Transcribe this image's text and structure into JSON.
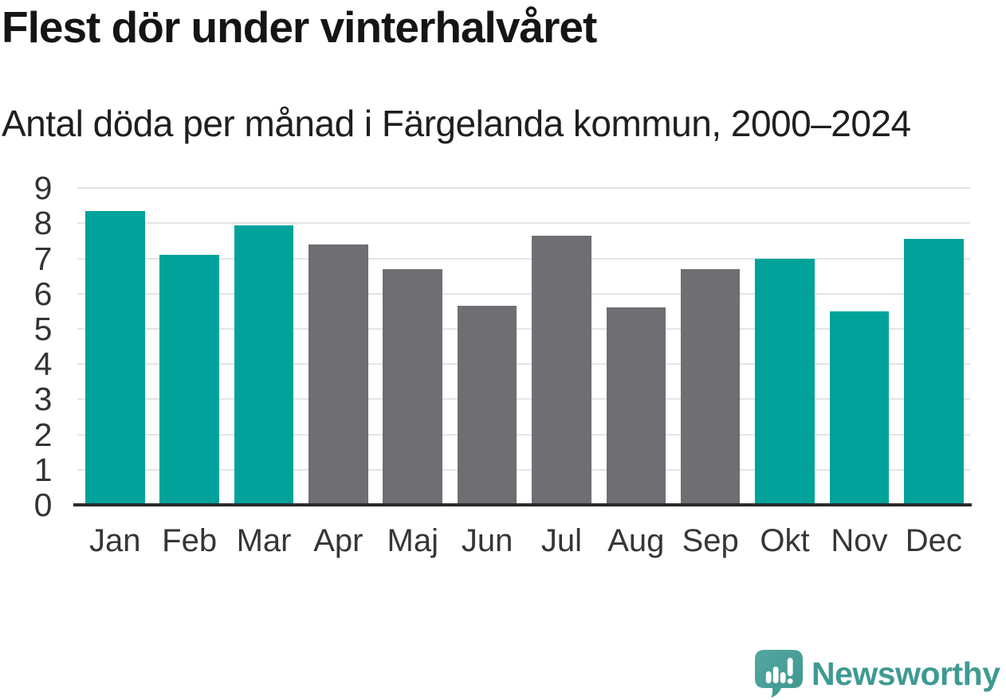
{
  "title": "Flest dör under vinterhalvåret",
  "subtitle": "Antal döda per månad i Färgelanda kommun, 2000–2024",
  "chart_data": {
    "type": "bar",
    "title": "Flest dör under vinterhalvåret",
    "subtitle": "Antal döda per månad i Färgelanda kommun, 2000–2024",
    "categories": [
      "Jan",
      "Feb",
      "Mar",
      "Apr",
      "Maj",
      "Jun",
      "Jul",
      "Aug",
      "Sep",
      "Okt",
      "Nov",
      "Dec"
    ],
    "values": [
      8.35,
      7.1,
      7.95,
      7.4,
      6.7,
      5.65,
      7.65,
      5.6,
      6.7,
      7.0,
      5.5,
      7.55
    ],
    "highlighted_categories": [
      "Jan",
      "Feb",
      "Mar",
      "Okt",
      "Nov",
      "Dec"
    ],
    "colors": {
      "highlight": "#00a29a",
      "default": "#6e6e73",
      "gridline": "#e4e4e4",
      "axis_line": "#2a2a2e",
      "tick_text": "#333333"
    },
    "xlabel": "",
    "ylabel": "",
    "ylim": [
      0,
      9
    ],
    "y_ticks": [
      0,
      1,
      2,
      3,
      4,
      5,
      6,
      7,
      8,
      9
    ],
    "grid": true,
    "legend": "none"
  },
  "footer": {
    "brand": "Newsworthy",
    "logo_icon": "newsworthy-speech-bubble-barchart-icon",
    "brand_color": "#3e9a93",
    "logo_fill_top": "#52a8a1",
    "logo_fill_bottom": "#3f968f"
  }
}
